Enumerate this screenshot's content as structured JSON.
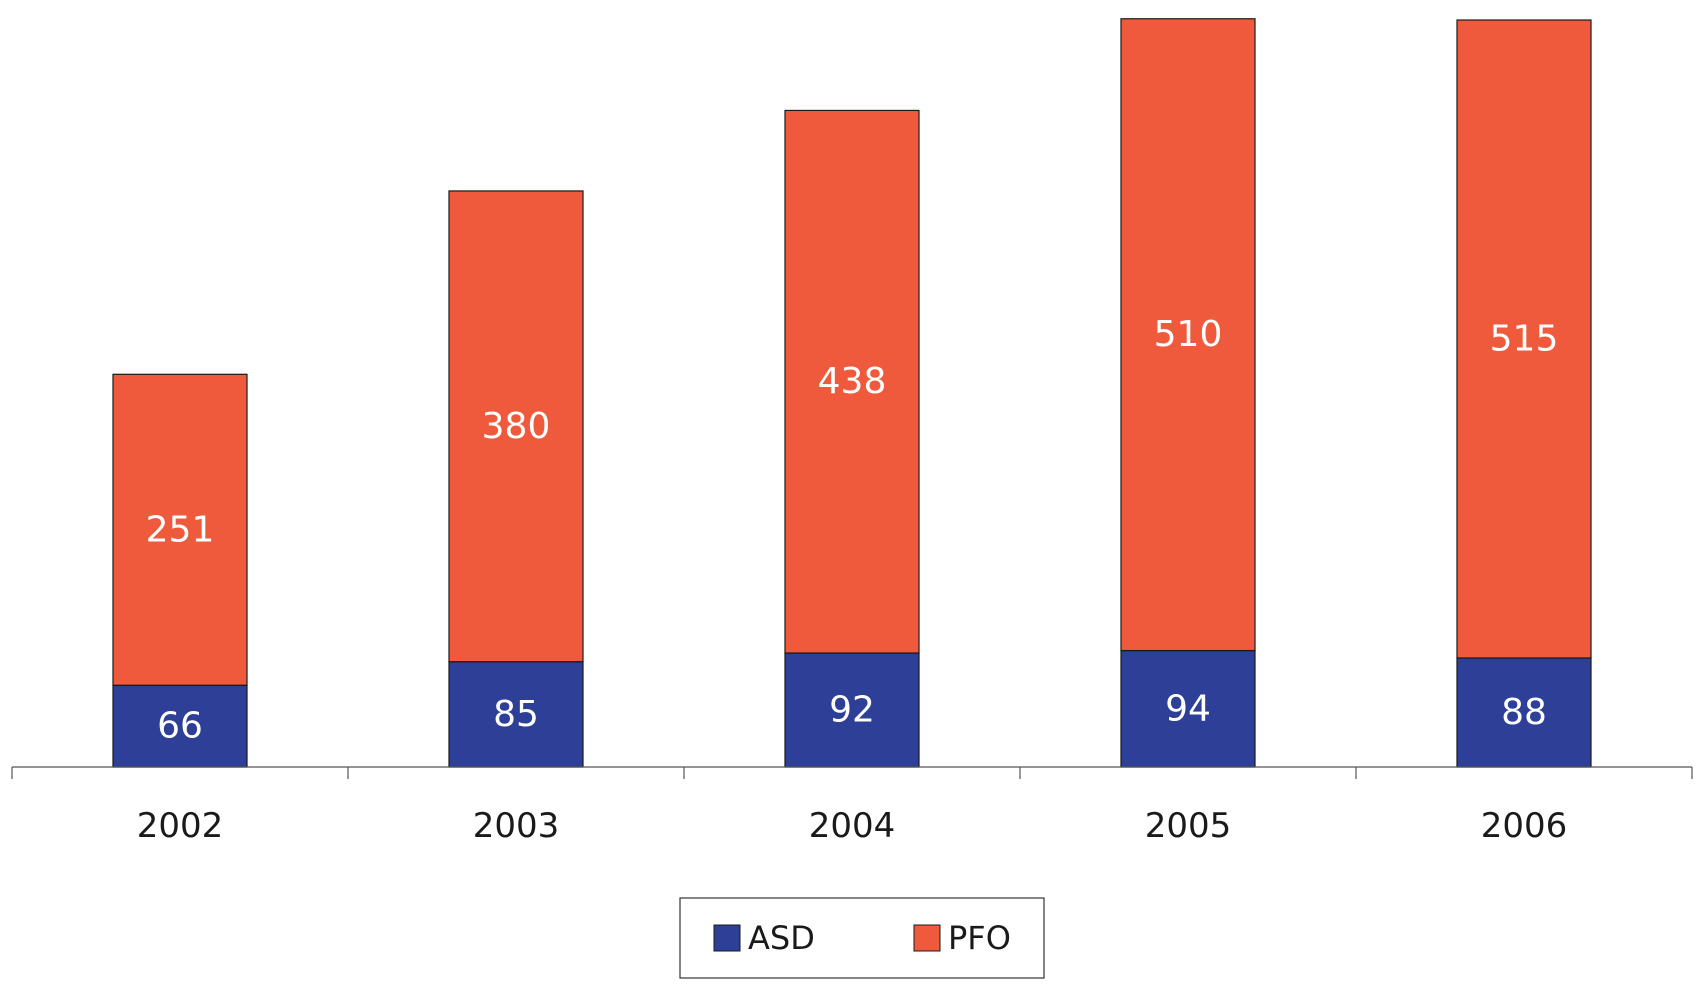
{
  "chart_data": {
    "type": "bar",
    "stacked": true,
    "title": "",
    "xlabel": "",
    "ylabel": "",
    "categories": [
      "2002",
      "2003",
      "2004",
      "2005",
      "2006"
    ],
    "series": [
      {
        "name": "ASD",
        "color": "#2e3f98",
        "values": [
          66,
          85,
          92,
          94,
          88
        ]
      },
      {
        "name": "PFO",
        "color": "#f05a3c",
        "values": [
          251,
          380,
          438,
          510,
          515
        ]
      }
    ],
    "ylim": [
      0,
      603
    ],
    "y_axis_visible": false,
    "grid": false,
    "data_labels": true,
    "legend": {
      "position": "bottom",
      "framed": true
    }
  }
}
